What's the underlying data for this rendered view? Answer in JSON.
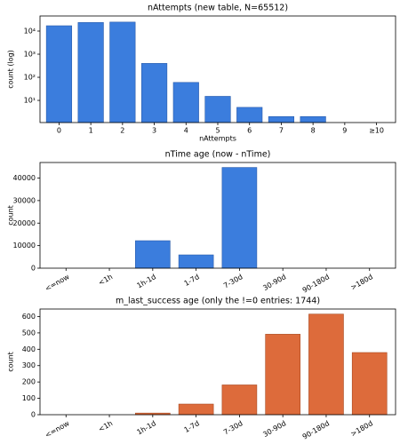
{
  "chart_data": [
    {
      "type": "bar",
      "title": "nAttempts (new table, N=65512)",
      "x_label": "nAttempts",
      "y_label": "count (log)",
      "categories": [
        "0",
        "1",
        "2",
        "3",
        "4",
        "5",
        "6",
        "7",
        "8",
        "9",
        "≥10"
      ],
      "values": [
        17000,
        23500,
        24500,
        400,
        60,
        15,
        5,
        2,
        2,
        0,
        0
      ],
      "color": "#3b7ddd",
      "edge_color": "#2a5cab",
      "log_scale": true,
      "ylim": [
        1.1,
        45000
      ],
      "yticks": [
        {
          "value": 10,
          "label": "10¹"
        },
        {
          "value": 100,
          "label": "10²"
        },
        {
          "value": 1000,
          "label": "10³"
        },
        {
          "value": 10000,
          "label": "10⁴"
        }
      ],
      "rotate_labels": false
    },
    {
      "type": "bar",
      "title": "nTime age (now - nTime)",
      "y_label": "count",
      "categories": [
        "<=now",
        "<1h",
        "1h-1d",
        "1-7d",
        "7-30d",
        "30-90d",
        "90-180d",
        ">180d"
      ],
      "values": [
        0,
        0,
        12200,
        5900,
        44700,
        0,
        0,
        0
      ],
      "color": "#3b7ddd",
      "edge_color": "#2a5cab",
      "log_scale": false,
      "ylim": [
        0,
        46900
      ],
      "yticks": [
        0,
        10000,
        20000,
        30000,
        40000
      ],
      "rotate_labels": true
    },
    {
      "type": "bar",
      "title": "m_last_success age (only the !=0 entries: 1744)",
      "y_label": "count",
      "categories": [
        "<=now",
        "<1h",
        "1h-1d",
        "1-7d",
        "7-30d",
        "30-90d",
        "90-180d",
        ">180d"
      ],
      "values": [
        0,
        0,
        10,
        65,
        182,
        492,
        615,
        380
      ],
      "color": "#dd6b3b",
      "edge_color": "#a84a22",
      "log_scale": false,
      "ylim": [
        0,
        646
      ],
      "yticks": [
        0,
        100,
        200,
        300,
        400,
        500,
        600
      ],
      "rotate_labels": true
    }
  ]
}
